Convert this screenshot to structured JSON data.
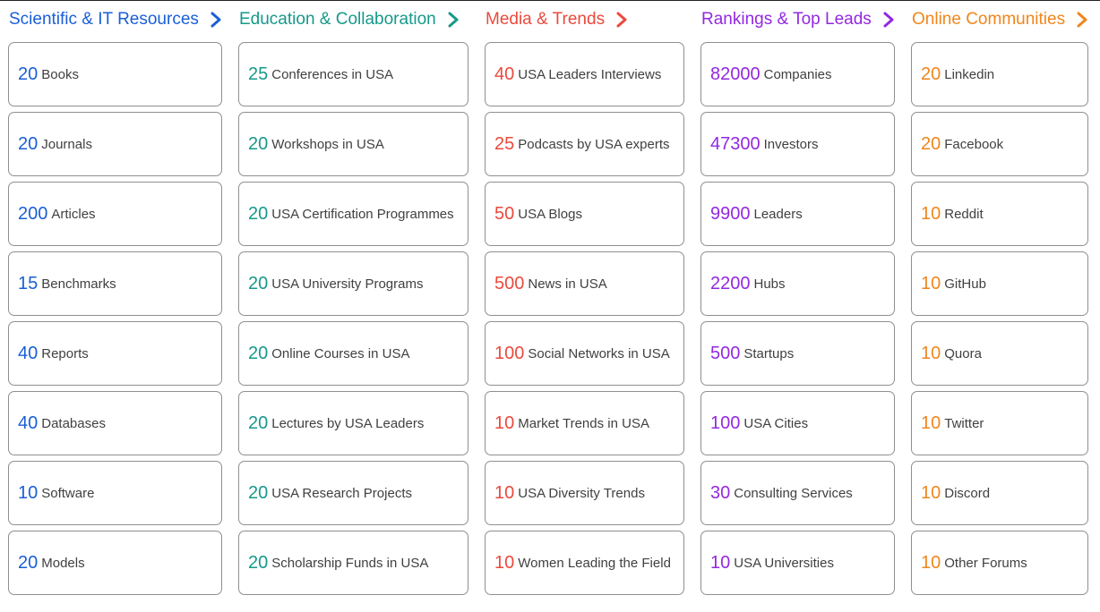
{
  "colors": {
    "blue": "#1a5fd6",
    "teal": "#16998a",
    "red": "#ea4a3c",
    "purple": "#9328e0",
    "orange": "#f0861c",
    "card_border": "#8f8f8f",
    "label_text": "#404040"
  },
  "icons": {
    "heading_arrow": "chevron-right-icon"
  },
  "columns": [
    {
      "title": "Scientific & IT Resources",
      "accent": "#1a5fd6",
      "items": [
        {
          "count": "20",
          "label": "Books"
        },
        {
          "count": "20",
          "label": "Journals"
        },
        {
          "count": "200",
          "label": "Articles"
        },
        {
          "count": "15",
          "label": "Benchmarks"
        },
        {
          "count": "40",
          "label": "Reports"
        },
        {
          "count": "40",
          "label": "Databases"
        },
        {
          "count": "10",
          "label": "Software"
        },
        {
          "count": "20",
          "label": "Models"
        }
      ]
    },
    {
      "title": "Education & Collaboration",
      "accent": "#16998a",
      "items": [
        {
          "count": "25",
          "label": "Conferences in USA"
        },
        {
          "count": "20",
          "label": "Workshops in USA"
        },
        {
          "count": "20",
          "label": "USA Certification Programmes"
        },
        {
          "count": "20",
          "label": "USA University Programs"
        },
        {
          "count": "20",
          "label": "Online Courses in USA"
        },
        {
          "count": "20",
          "label": "Lectures by USA Leaders"
        },
        {
          "count": "20",
          "label": "USA Research Projects"
        },
        {
          "count": "20",
          "label": "Scholarship Funds in USA"
        }
      ]
    },
    {
      "title": "Media & Trends",
      "accent": "#ea4a3c",
      "items": [
        {
          "count": "40",
          "label": "USA Leaders Interviews"
        },
        {
          "count": "25",
          "label": "Podcasts by USA experts"
        },
        {
          "count": "50",
          "label": "USA Blogs"
        },
        {
          "count": "500",
          "label": "News in USA"
        },
        {
          "count": "100",
          "label": "Social Networks in USA"
        },
        {
          "count": "10",
          "label": "Market Trends in USA"
        },
        {
          "count": "10",
          "label": "USA Diversity Trends"
        },
        {
          "count": "10",
          "label": "Women Leading the Field"
        }
      ]
    },
    {
      "title": "Rankings & Top Leads",
      "accent": "#9328e0",
      "items": [
        {
          "count": "82000",
          "label": "Companies"
        },
        {
          "count": "47300",
          "label": "Investors"
        },
        {
          "count": "9900",
          "label": "Leaders"
        },
        {
          "count": "2200",
          "label": "Hubs"
        },
        {
          "count": "500",
          "label": "Startups"
        },
        {
          "count": "100",
          "label": "USA Cities"
        },
        {
          "count": "30",
          "label": "Consulting Services"
        },
        {
          "count": "10",
          "label": "USA Universities"
        }
      ]
    },
    {
      "title": "Online Communities",
      "accent": "#f0861c",
      "items": [
        {
          "count": "20",
          "label": "Linkedin"
        },
        {
          "count": "20",
          "label": "Facebook"
        },
        {
          "count": "10",
          "label": "Reddit"
        },
        {
          "count": "10",
          "label": "GitHub"
        },
        {
          "count": "10",
          "label": "Quora"
        },
        {
          "count": "10",
          "label": "Twitter"
        },
        {
          "count": "10",
          "label": "Discord"
        },
        {
          "count": "10",
          "label": "Other Forums"
        }
      ]
    }
  ]
}
